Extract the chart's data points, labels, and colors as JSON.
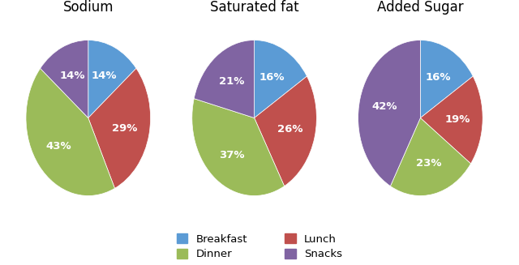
{
  "charts": [
    {
      "title": "Sodium",
      "labels": [
        "Breakfast",
        "Lunch",
        "Dinner",
        "Snacks"
      ],
      "values": [
        14,
        29,
        43,
        14
      ],
      "colors": [
        "#5B9BD5",
        "#C0504D",
        "#9BBB59",
        "#8064A2"
      ],
      "startangle": 90
    },
    {
      "title": "Saturated fat",
      "labels": [
        "Breakfast",
        "Lunch",
        "Dinner",
        "Snacks"
      ],
      "values": [
        16,
        26,
        37,
        21
      ],
      "colors": [
        "#5B9BD5",
        "#C0504D",
        "#9BBB59",
        "#8064A2"
      ],
      "startangle": 90
    },
    {
      "title": "Added Sugar",
      "labels": [
        "Breakfast",
        "Lunch",
        "Dinner",
        "Snacks"
      ],
      "values": [
        16,
        19,
        23,
        42
      ],
      "colors": [
        "#5B9BD5",
        "#C0504D",
        "#9BBB59",
        "#8064A2"
      ],
      "startangle": 90
    }
  ],
  "legend_labels_col1": [
    "Breakfast",
    "Lunch"
  ],
  "legend_labels_col2": [
    "Dinner",
    "Snacks"
  ],
  "legend_colors": [
    "#5B9BD5",
    "#C0504D",
    "#9BBB59",
    "#8064A2"
  ],
  "background_color": "#FFFFFF",
  "text_color": "#FFFFFF",
  "title_fontsize": 12,
  "label_fontsize": 9.5
}
